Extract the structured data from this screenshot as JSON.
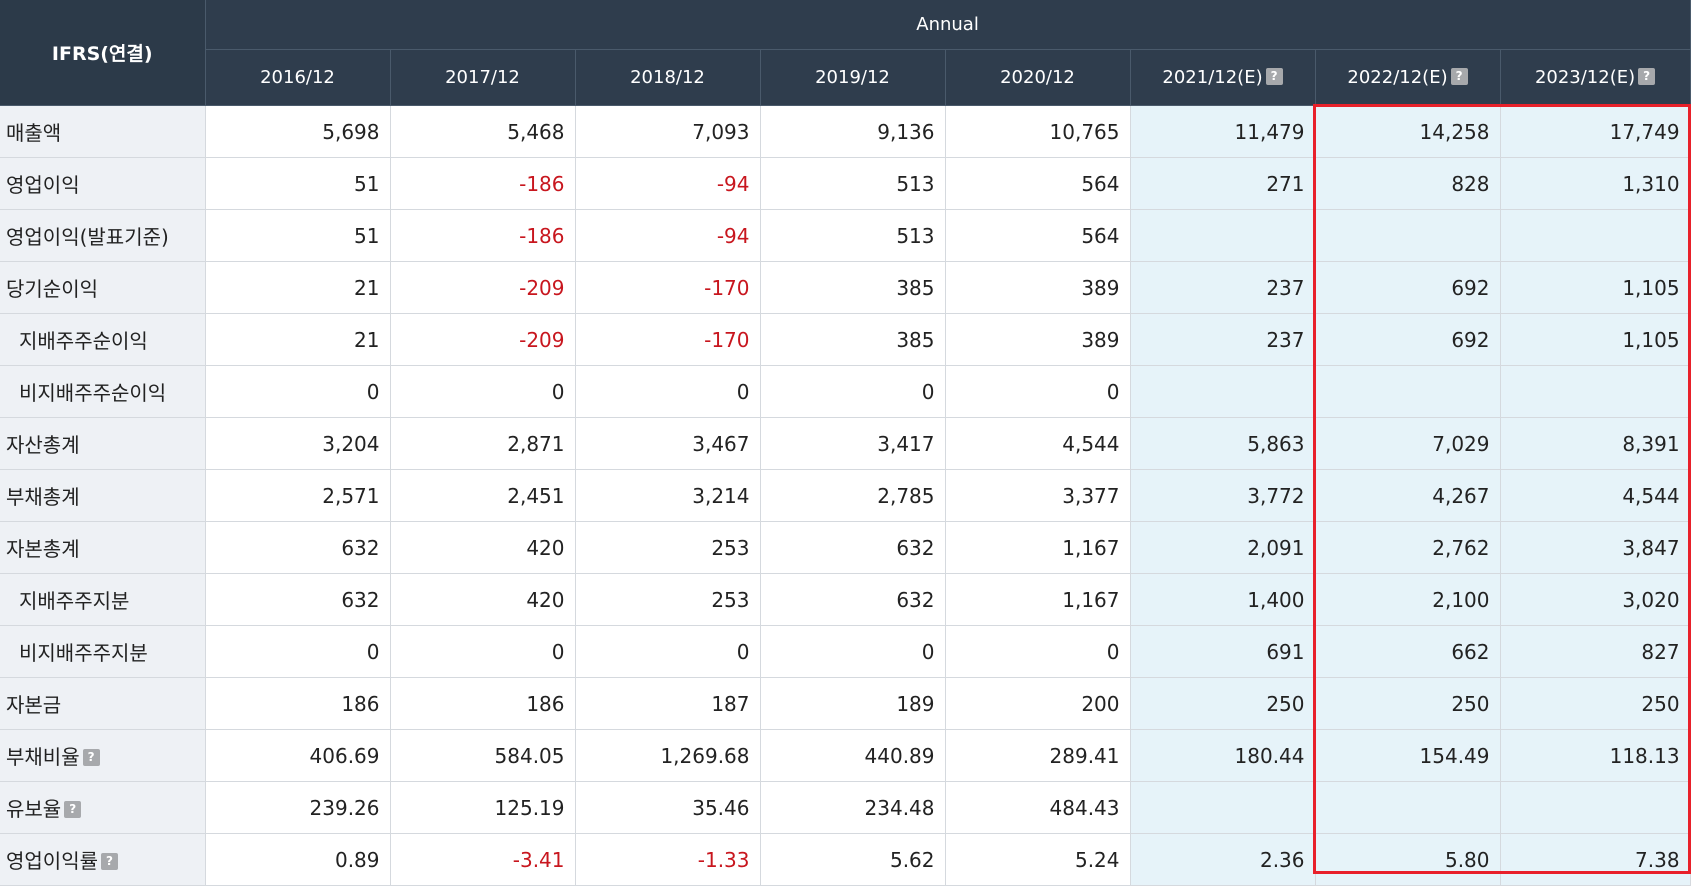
{
  "header": {
    "corner_label": "IFRS(연결)",
    "group_label": "Annual",
    "columns": [
      {
        "label": "2016/12",
        "estimate": false
      },
      {
        "label": "2017/12",
        "estimate": false
      },
      {
        "label": "2018/12",
        "estimate": false
      },
      {
        "label": "2019/12",
        "estimate": false
      },
      {
        "label": "2020/12",
        "estimate": false
      },
      {
        "label": "2021/12(E)",
        "estimate": true
      },
      {
        "label": "2022/12(E)",
        "estimate": true
      },
      {
        "label": "2023/12(E)",
        "estimate": true
      }
    ],
    "help_glyph": "?"
  },
  "rows": [
    {
      "label": "매출액",
      "sub": false,
      "help": false,
      "values": [
        "5,698",
        "5,468",
        "7,093",
        "9,136",
        "10,765",
        "11,479",
        "14,258",
        "17,749"
      ]
    },
    {
      "label": "영업이익",
      "sub": false,
      "help": false,
      "values": [
        "51",
        "-186",
        "-94",
        "513",
        "564",
        "271",
        "828",
        "1,310"
      ]
    },
    {
      "label": "영업이익(발표기준)",
      "sub": false,
      "help": false,
      "values": [
        "51",
        "-186",
        "-94",
        "513",
        "564",
        "",
        "",
        ""
      ]
    },
    {
      "label": "당기순이익",
      "sub": false,
      "help": false,
      "values": [
        "21",
        "-209",
        "-170",
        "385",
        "389",
        "237",
        "692",
        "1,105"
      ]
    },
    {
      "label": "지배주주순이익",
      "sub": true,
      "help": false,
      "values": [
        "21",
        "-209",
        "-170",
        "385",
        "389",
        "237",
        "692",
        "1,105"
      ]
    },
    {
      "label": "비지배주주순이익",
      "sub": true,
      "help": false,
      "values": [
        "0",
        "0",
        "0",
        "0",
        "0",
        "",
        "",
        ""
      ]
    },
    {
      "label": "자산총계",
      "sub": false,
      "help": false,
      "values": [
        "3,204",
        "2,871",
        "3,467",
        "3,417",
        "4,544",
        "5,863",
        "7,029",
        "8,391"
      ]
    },
    {
      "label": "부채총계",
      "sub": false,
      "help": false,
      "values": [
        "2,571",
        "2,451",
        "3,214",
        "2,785",
        "3,377",
        "3,772",
        "4,267",
        "4,544"
      ]
    },
    {
      "label": "자본총계",
      "sub": false,
      "help": false,
      "values": [
        "632",
        "420",
        "253",
        "632",
        "1,167",
        "2,091",
        "2,762",
        "3,847"
      ]
    },
    {
      "label": "지배주주지분",
      "sub": true,
      "help": false,
      "values": [
        "632",
        "420",
        "253",
        "632",
        "1,167",
        "1,400",
        "2,100",
        "3,020"
      ]
    },
    {
      "label": "비지배주주지분",
      "sub": true,
      "help": false,
      "values": [
        "0",
        "0",
        "0",
        "0",
        "0",
        "691",
        "662",
        "827"
      ]
    },
    {
      "label": "자본금",
      "sub": false,
      "help": false,
      "values": [
        "186",
        "186",
        "187",
        "189",
        "200",
        "250",
        "250",
        "250"
      ]
    },
    {
      "label": "부채비율",
      "sub": false,
      "help": true,
      "values": [
        "406.69",
        "584.05",
        "1,269.68",
        "440.89",
        "289.41",
        "180.44",
        "154.49",
        "118.13"
      ]
    },
    {
      "label": "유보율",
      "sub": false,
      "help": true,
      "values": [
        "239.26",
        "125.19",
        "35.46",
        "234.48",
        "484.43",
        "",
        "",
        ""
      ]
    },
    {
      "label": "영업이익률",
      "sub": false,
      "help": true,
      "values": [
        "0.89",
        "-3.41",
        "-1.33",
        "5.62",
        "5.24",
        "2.36",
        "5.80",
        "7.38"
      ]
    }
  ],
  "colors": {
    "header_bg": "#2f3d4d",
    "label_bg": "#eef1f5",
    "estimate_bg": "#e6f3f9",
    "negative": "#c8161e",
    "highlight_border": "#e8202a"
  }
}
